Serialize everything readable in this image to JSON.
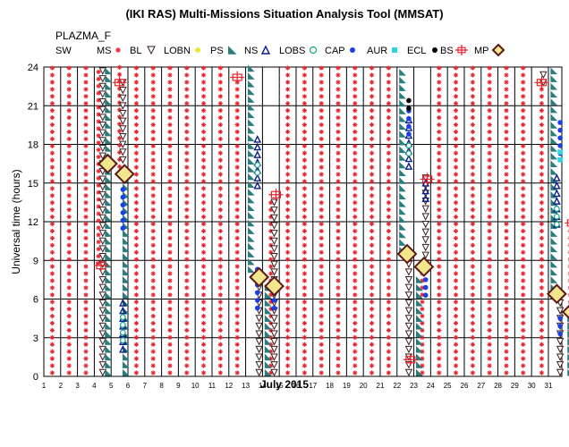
{
  "chart_data": {
    "type": "scatter",
    "title": "(IKI RAS) Multi-Missions Situation Analysis Tool (MMSAT)",
    "subtitle": "PLAZMA_F",
    "xlabel": "July 2015",
    "ylabel": "Universal time (hours)",
    "xlim": [
      1,
      31.8
    ],
    "ylim": [
      0,
      24
    ],
    "x_ticks": [
      "1",
      "2",
      "3",
      "4",
      "5",
      "6",
      "7",
      "8",
      "9",
      "10",
      "11",
      "12",
      "13",
      "14",
      "15",
      "16",
      "17",
      "18",
      "19",
      "20",
      "21",
      "22",
      "23",
      "24",
      "25",
      "26",
      "27",
      "28",
      "29",
      "30",
      "31"
    ],
    "y_ticks": [
      "0",
      "3",
      "6",
      "9",
      "12",
      "15",
      "18",
      "21",
      "24"
    ],
    "grid": true,
    "legend_placement": "top",
    "legend": [
      {
        "label": "SW",
        "marker": "none",
        "color": "#000000"
      },
      {
        "label": "MS",
        "marker": "asterisk",
        "color": "#e8242c"
      },
      {
        "label": "BL",
        "marker": "triangle-down",
        "color": "#3b1f1f"
      },
      {
        "label": "LOBN",
        "marker": "circle",
        "color": "#f2e630"
      },
      {
        "label": "PS",
        "marker": "triangle-right",
        "color": "#2a7d7d"
      },
      {
        "label": "NS",
        "marker": "triangle-up",
        "color": "#0a1e8c"
      },
      {
        "label": "LOBS",
        "marker": "circle-open",
        "color": "#1aa58a"
      },
      {
        "label": "CAP",
        "marker": "circle",
        "color": "#1a3ee8"
      },
      {
        "label": "AUR",
        "marker": "square",
        "color": "#2ed7e0"
      },
      {
        "label": "ECL",
        "marker": "circle",
        "color": "#000000"
      },
      {
        "label": "BS",
        "marker": "cross",
        "color": "#e8242c"
      },
      {
        "label": "MP",
        "marker": "diamond",
        "color": "#5a1a1a"
      }
    ],
    "colors": {
      "ms": "#e8242c",
      "bl": "#3b1f1f",
      "ps": "#2a7d7d",
      "ns": "#0a1e8c",
      "lobs": "#1aa58a",
      "cap": "#1a3ee8",
      "aur": "#2ed7e0",
      "ecl": "#000000",
      "bs": "#e8242c",
      "mp_edge": "#5a1a1a",
      "mp_fill": "#f2e68c"
    },
    "series": [
      {
        "name": "MS",
        "regions": [
          [
            0.5,
            0,
            24
          ],
          [
            1.5,
            0,
            24
          ],
          [
            2.5,
            0,
            24
          ],
          [
            3.25,
            8.5,
            24
          ],
          [
            4.5,
            16,
            24
          ],
          [
            5.5,
            0,
            24
          ],
          [
            6.5,
            0,
            24
          ],
          [
            7.5,
            0,
            24
          ],
          [
            8.5,
            0,
            24
          ],
          [
            9.5,
            0,
            24
          ],
          [
            10.5,
            0,
            24
          ],
          [
            11.5,
            0,
            23.3
          ],
          [
            13.5,
            0,
            13.5
          ],
          [
            14.5,
            0,
            24
          ],
          [
            15.5,
            0,
            24
          ],
          [
            16.5,
            0,
            24
          ],
          [
            17.5,
            0,
            24
          ],
          [
            18.5,
            0,
            24
          ],
          [
            19.5,
            0,
            24
          ],
          [
            20.5,
            0,
            24
          ],
          [
            22.5,
            0,
            8.5
          ],
          [
            23.5,
            0,
            24
          ],
          [
            24.5,
            0,
            24
          ],
          [
            25.5,
            0,
            24
          ],
          [
            26.5,
            0,
            24
          ],
          [
            27.5,
            0,
            24
          ],
          [
            28.5,
            0,
            24
          ],
          [
            29.6,
            0,
            23
          ],
          [
            31.3,
            0,
            11.5
          ]
        ]
      },
      {
        "name": "BL",
        "regions": [
          [
            3.5,
            0,
            24
          ],
          [
            4.7,
            16.5,
            23
          ],
          [
            12.8,
            0,
            8
          ],
          [
            13.7,
            0,
            13.5
          ],
          [
            21.7,
            0,
            9.5
          ],
          [
            22.7,
            8.5,
            15.5
          ],
          [
            30.7,
            0,
            6
          ],
          [
            29.7,
            22.5,
            24
          ]
        ]
      },
      {
        "name": "PS",
        "regions": [
          [
            3.8,
            0,
            24
          ],
          [
            4.85,
            0,
            16
          ],
          [
            12.3,
            8,
            24
          ],
          [
            13.3,
            0,
            7
          ],
          [
            21.3,
            9.5,
            24
          ],
          [
            22.3,
            0,
            8
          ],
          [
            30.3,
            6,
            24
          ],
          [
            31.3,
            0,
            5
          ]
        ]
      },
      {
        "name": "NS",
        "regions": [
          [
            4.7,
            1.8,
            5.8
          ],
          [
            12.7,
            14.5,
            18.5
          ],
          [
            21.7,
            16,
            20.5
          ],
          [
            22.7,
            13.5,
            15.5
          ],
          [
            30.5,
            11.5,
            15.5
          ]
        ]
      },
      {
        "name": "LOBS",
        "regions": [
          [
            4.7,
            2.5,
            5
          ],
          [
            12.7,
            15.5,
            17
          ],
          [
            21.7,
            17,
            18.5
          ],
          [
            30.5,
            11.5,
            13.5
          ]
        ]
      },
      {
        "name": "CAP",
        "regions": [
          [
            4.7,
            11.2,
            14.5
          ],
          [
            12.7,
            5,
            8.5
          ],
          [
            13.7,
            5,
            6.5
          ],
          [
            21.7,
            18.5,
            21
          ],
          [
            22.7,
            6,
            8
          ],
          [
            30.7,
            3,
            5
          ],
          [
            30.7,
            17,
            20
          ]
        ]
      },
      {
        "name": "AUR",
        "regions": [
          [
            30.7,
            16.5,
            17.5
          ]
        ]
      },
      {
        "name": "ECL",
        "regions": [
          [
            21.7,
            20.5,
            22
          ]
        ]
      },
      {
        "name": "BS",
        "points": [
          [
            4.5,
            22.8
          ],
          [
            3.4,
            8.6
          ],
          [
            11.5,
            23.2
          ],
          [
            13.8,
            14.1
          ],
          [
            21.8,
            1.3
          ],
          [
            22.8,
            15.3
          ],
          [
            29.6,
            22.8
          ],
          [
            31.4,
            11.9
          ]
        ]
      },
      {
        "name": "MP",
        "points": [
          [
            3.8,
            16.5
          ],
          [
            4.8,
            15.7
          ],
          [
            12.8,
            7.7
          ],
          [
            13.7,
            7
          ],
          [
            21.6,
            9.5
          ],
          [
            22.6,
            8.5
          ],
          [
            30.5,
            6.4
          ],
          [
            31.4,
            5
          ]
        ]
      }
    ]
  }
}
